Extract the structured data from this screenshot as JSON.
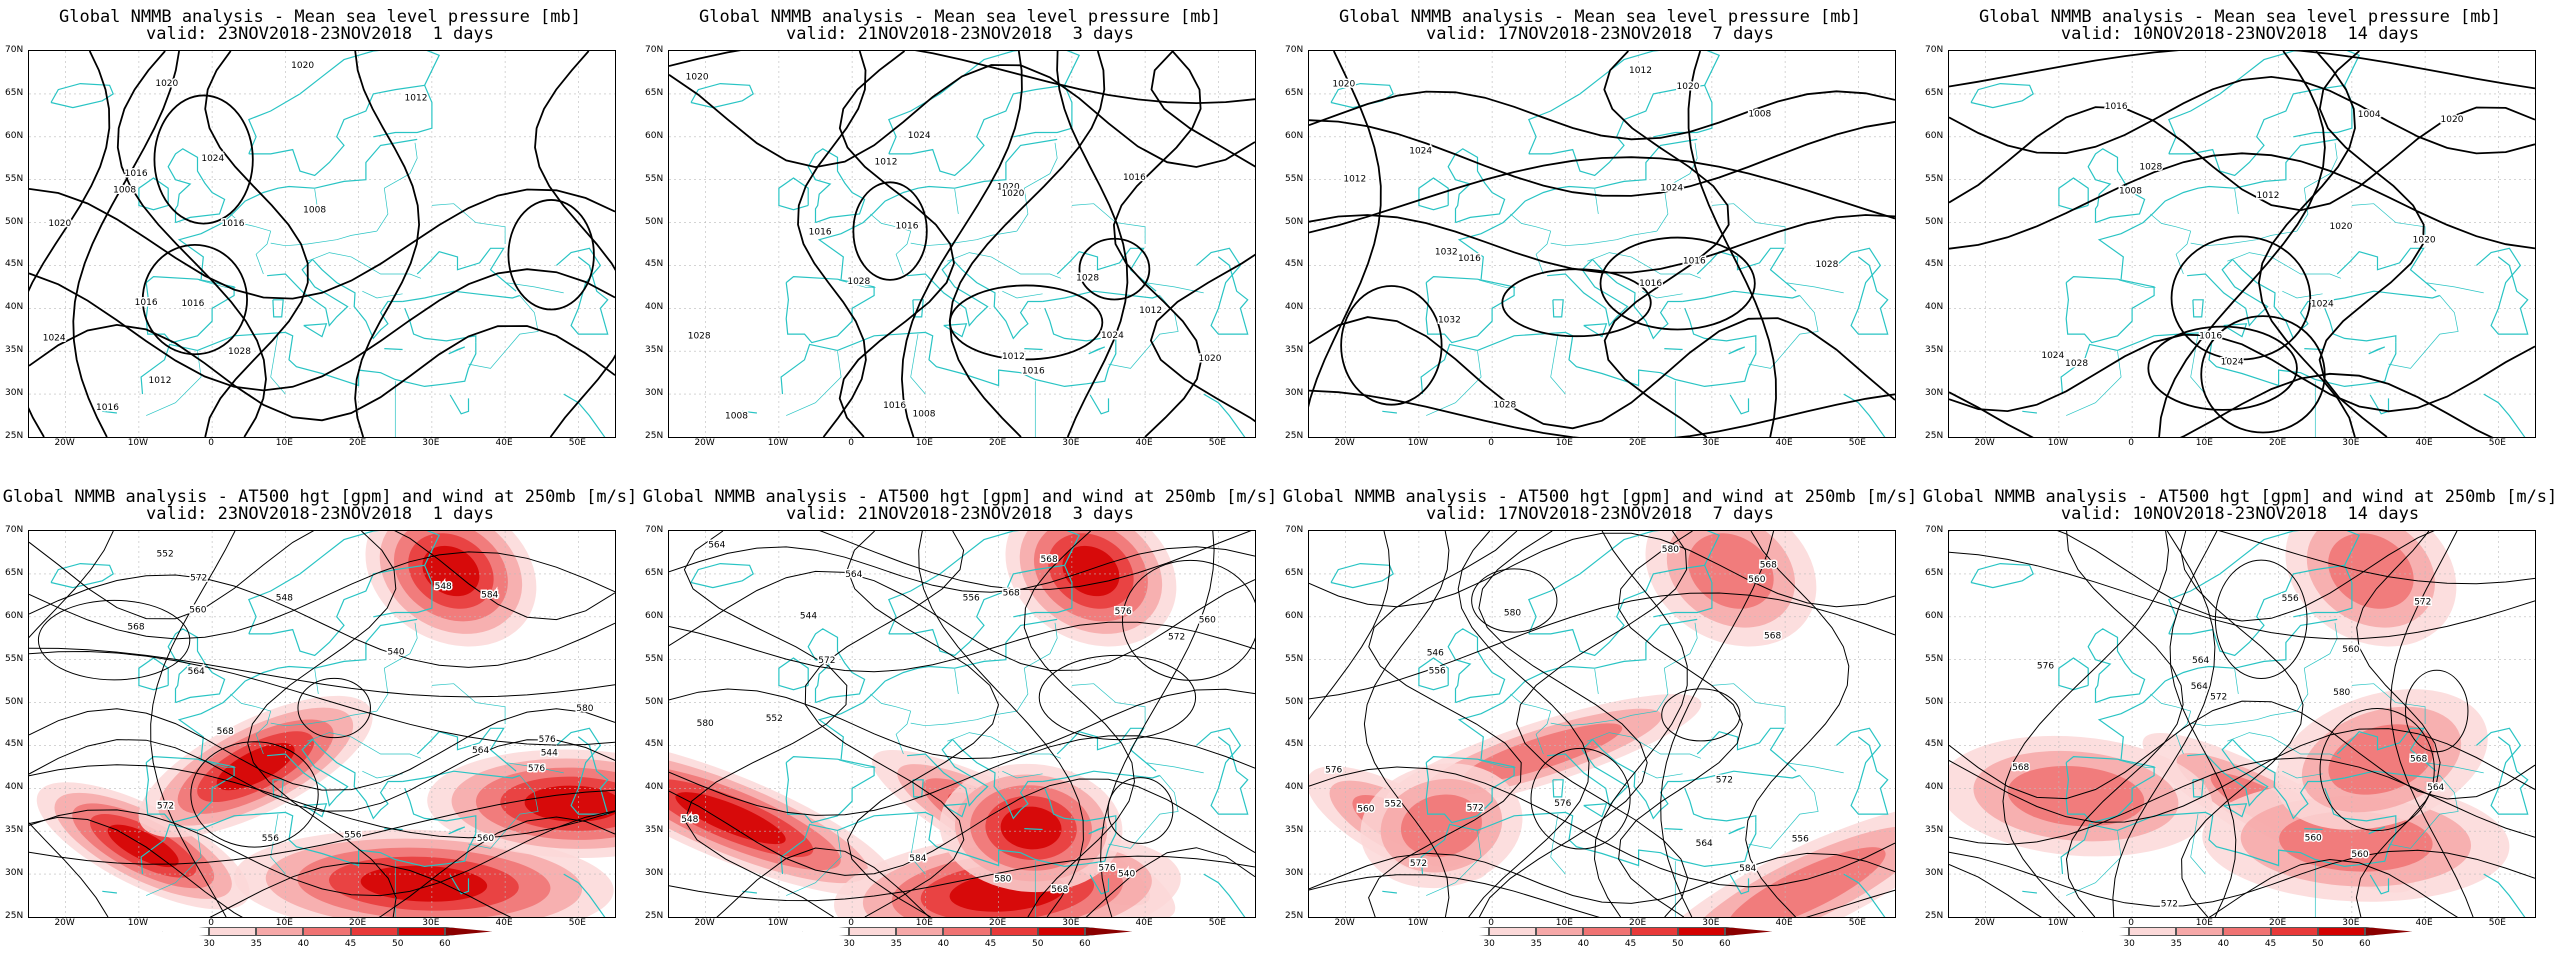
{
  "top_row": [
    {
      "title": "Global NMMB analysis - Mean sea level pressure [mb]",
      "valid": "valid: 23NOV2018-23NOV2018  1 days"
    },
    {
      "title": "Global NMMB analysis - Mean sea level pressure [mb]",
      "valid": "valid: 21NOV2018-23NOV2018  3 days"
    },
    {
      "title": "Global NMMB analysis - Mean sea level pressure [mb]",
      "valid": "valid: 17NOV2018-23NOV2018  7 days"
    },
    {
      "title": "Global NMMB analysis - Mean sea level pressure [mb]",
      "valid": "valid: 10NOV2018-23NOV2018  14 days"
    }
  ],
  "bottom_row": [
    {
      "title": "Global NMMB analysis - AT500 hgt [gpm] and wind at 250mb [m/s]",
      "valid": "valid: 23NOV2018-23NOV2018  1 days"
    },
    {
      "title": "Global NMMB analysis - AT500 hgt [gpm] and wind at 250mb [m/s]",
      "valid": "valid: 21NOV2018-23NOV2018  3 days"
    },
    {
      "title": "Global NMMB analysis - AT500 hgt [gpm] and wind at 250mb [m/s]",
      "valid": "valid: 17NOV2018-23NOV2018  7 days"
    },
    {
      "title": "Global NMMB analysis - AT500 hgt [gpm] and wind at 250mb [m/s]",
      "valid": "valid: 10NOV2018-23NOV2018  14 days"
    }
  ],
  "lat_labels": [
    "70N",
    "65N",
    "60N",
    "55N",
    "50N",
    "45N",
    "40N",
    "35N",
    "30N",
    "25N"
  ],
  "lon_labels": [
    "20W",
    "10W",
    "0",
    "10E",
    "20E",
    "30E",
    "40E",
    "50E"
  ],
  "colorbar": {
    "labels": [
      "30",
      "35",
      "40",
      "45",
      "50",
      "60"
    ],
    "colors": [
      "#ffffff",
      "#fbd8d8",
      "#f6a8a8",
      "#f07373",
      "#e83a3a",
      "#d40000",
      "#8a0000"
    ]
  },
  "contour_labels": {
    "mslp": [
      [
        "1016",
        "1028",
        "1024",
        "1020",
        "1008",
        "1008",
        "1012",
        "1020",
        "1024",
        "1016",
        "1012",
        "1016",
        "1020",
        "1016",
        "1016"
      ],
      [
        "1028",
        "1024",
        "1028",
        "1020",
        "1012",
        "1008",
        "1008",
        "1012",
        "1016",
        "1012",
        "1016",
        "1020",
        "1024",
        "1028",
        "1020",
        "1016",
        "1016",
        "1020",
        "1016"
      ],
      [
        "1032",
        "1032",
        "1028",
        "1024",
        "1012",
        "1016",
        "1020",
        "1016",
        "1008",
        "1012",
        "1016",
        "1020",
        "1024",
        "1028"
      ],
      [
        "1020",
        "1024",
        "1028",
        "1004",
        "1008",
        "1016",
        "1020",
        "1024",
        "1028",
        "1024",
        "1012",
        "1016",
        "1020"
      ]
    ],
    "z500": [
      [
        "552",
        "556",
        "564",
        "540",
        "548",
        "544",
        "548",
        "556",
        "564",
        "560",
        "584",
        "568",
        "572",
        "580",
        "576",
        "560",
        "572",
        "576",
        "568"
      ],
      [
        "568",
        "548",
        "540",
        "544",
        "552",
        "556",
        "560",
        "564",
        "568",
        "572",
        "576",
        "580",
        "584",
        "572",
        "568",
        "576",
        "580",
        "564"
      ],
      [
        "572",
        "576",
        "568",
        "560",
        "556",
        "552",
        "546",
        "556",
        "560",
        "564",
        "572",
        "576",
        "580",
        "568",
        "572",
        "580",
        "584"
      ],
      [
        "560",
        "564",
        "568",
        "572",
        "556",
        "560",
        "564",
        "568",
        "572",
        "576",
        "580",
        "564",
        "572",
        "560"
      ]
    ]
  }
}
